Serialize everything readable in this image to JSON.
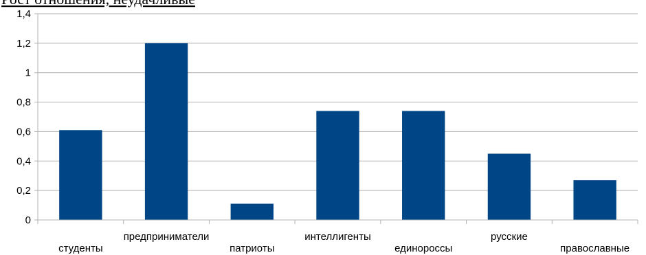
{
  "chart_data": {
    "type": "bar",
    "title": "Рост отношения, неудачливые",
    "categories": [
      "студенты",
      "предприниматели",
      "патриоты",
      "интеллигенты",
      "единороссы",
      "русские",
      "православные"
    ],
    "values": [
      0.61,
      1.2,
      0.11,
      0.74,
      0.74,
      0.45,
      0.27
    ],
    "ylim": [
      0,
      1.4
    ],
    "yticks": [
      "0",
      "0,2",
      "0,4",
      "0,6",
      "0,8",
      "1",
      "1,2",
      "1,4"
    ],
    "xlabel": "",
    "ylabel": "",
    "grid": true,
    "legend": "none",
    "bar_color": "#004586",
    "grid_color": "#b3b3b3",
    "axis_color": "#b3b3b3"
  }
}
